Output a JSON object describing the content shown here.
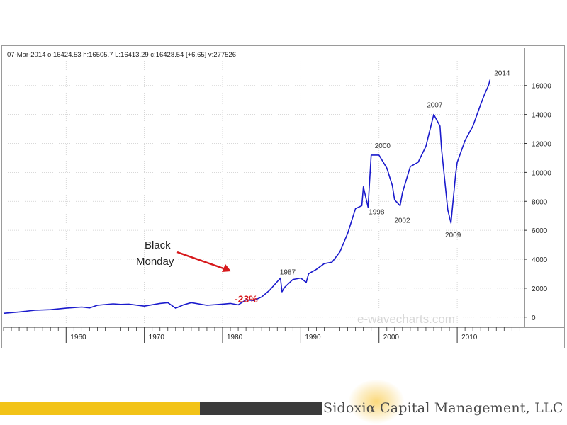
{
  "chart_data": {
    "type": "line",
    "header_readout": "07-Mar-2014  o:16424.53  h:16505,7  L:16413.29  c:16428.54  [+6.65]  v:277526",
    "series": [
      {
        "color": "#1a1acc",
        "x": [
          1952,
          1954,
          1956,
          1958,
          1960,
          1962,
          1963,
          1964,
          1966,
          1967,
          1968,
          1970,
          1972,
          1973,
          1974,
          1975,
          1976,
          1978,
          1980,
          1981,
          1982,
          1983,
          1984,
          1985,
          1986,
          1987.4,
          1987.6,
          1987.8,
          1988,
          1989,
          1990,
          1990.7,
          1991,
          1992,
          1993,
          1994,
          1995,
          1996,
          1997,
          1997.8,
          1998,
          1998.6,
          1999,
          2000,
          2001,
          2001.7,
          2002,
          2002.7,
          2003,
          2004,
          2005,
          2006,
          2007,
          2007.8,
          2008,
          2008.8,
          2009.2,
          2009.8,
          2010,
          2011,
          2012,
          2013,
          2013.5,
          2014,
          2014.2
        ],
        "y": [
          270,
          360,
          480,
          520,
          620,
          700,
          640,
          820,
          920,
          880,
          900,
          760,
          950,
          1000,
          620,
          850,
          1000,
          820,
          900,
          950,
          850,
          1200,
          1150,
          1400,
          1850,
          2700,
          1750,
          1950,
          2100,
          2600,
          2700,
          2400,
          3000,
          3300,
          3700,
          3800,
          4500,
          5800,
          7500,
          7700,
          9000,
          7600,
          11200,
          11200,
          10300,
          9100,
          8100,
          7700,
          8600,
          10400,
          10700,
          11800,
          14000,
          13200,
          11600,
          7400,
          6500,
          9900,
          10700,
          12200,
          13200,
          14700,
          15400,
          16000,
          16400
        ]
      }
    ],
    "x_ticks": [
      "1960",
      "1970",
      "1980",
      "1990",
      "2000",
      "2010"
    ],
    "y_ticks": [
      "0",
      "2000",
      "4000",
      "6000",
      "8000",
      "10000",
      "12000",
      "14000",
      "16000"
    ],
    "xlim": [
      1952,
      2018.6
    ],
    "ylim": [
      -500,
      17700
    ],
    "grid": true,
    "annotations": {
      "peak_labels": [
        {
          "text": "1987",
          "x": 1987.5,
          "y": 2700
        },
        {
          "text": "2000",
          "x": 2000,
          "y": 11200
        },
        {
          "text": "1998",
          "x": 1998.5,
          "y": 7700
        },
        {
          "text": "2002",
          "x": 2002.5,
          "y": 7300
        },
        {
          "text": "2007",
          "x": 2007.2,
          "y": 14000
        },
        {
          "text": "2009",
          "x": 2009,
          "y": 6500
        },
        {
          "text": "2014",
          "x": 2014,
          "y": 16400
        }
      ],
      "callout_line1": "Black",
      "callout_line2": "Monday",
      "drop_label": "-23%",
      "drop_color": "#d7191c",
      "arrow_color": "#d7191c",
      "watermark": "e-wavecharts.com"
    }
  },
  "footer": {
    "logo_prefix": "Sidoxi",
    "logo_alpha": "α",
    "logo_suffix": " Capital Management, LLC",
    "accent_yellow": "#f2c318",
    "accent_dark": "#3b3b3b"
  }
}
